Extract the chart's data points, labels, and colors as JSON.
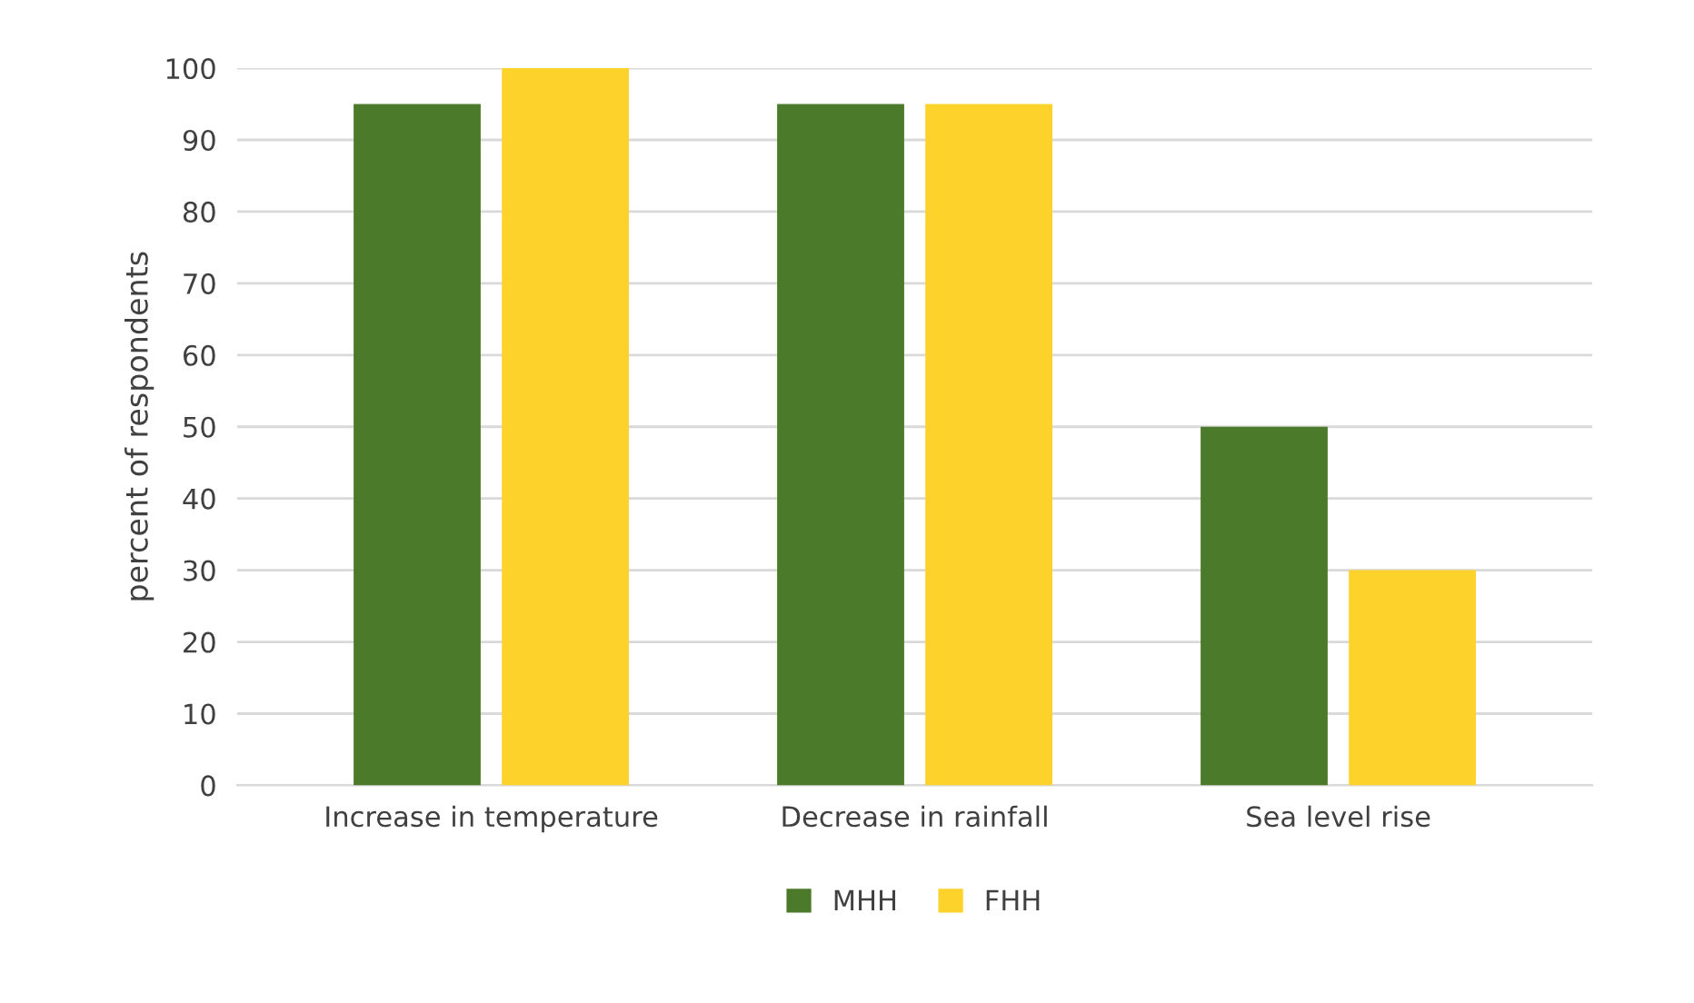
{
  "chart_data": {
    "type": "bar",
    "ylabel": "percent of respondents",
    "categories": [
      "Increase in temperature",
      "Decrease in rainfall",
      "Sea level rise"
    ],
    "series": [
      {
        "name": "MHH",
        "color": "#4b7a2b",
        "values": [
          95,
          95,
          50
        ]
      },
      {
        "name": "FHH",
        "color": "#fdd22a",
        "values": [
          100,
          95,
          30
        ]
      }
    ],
    "ylim": [
      0,
      100
    ],
    "yticks": [
      0,
      10,
      20,
      30,
      40,
      50,
      60,
      70,
      80,
      90,
      100
    ],
    "grid": "y",
    "legend": "bottom"
  }
}
